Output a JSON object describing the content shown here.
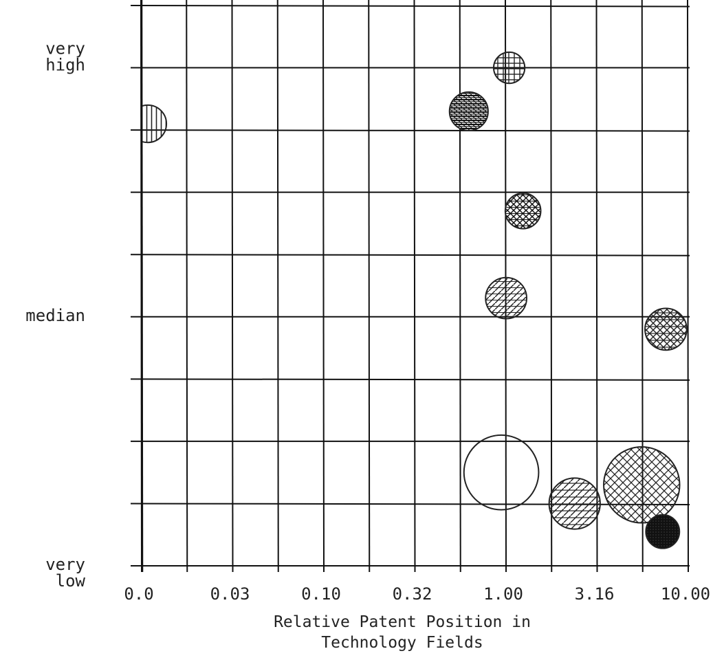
{
  "chart_data": {
    "type": "scatter",
    "subtype": "bubble",
    "xlabel": [
      "Relative Patent Position in",
      "Technology Fields"
    ],
    "ylabel": "",
    "x_scale": "log (√10 steps; first tick labelled 0.0)",
    "x_ticks": [
      "0.0",
      "0.03",
      "0.10",
      "0.32",
      "1.00",
      "3.16",
      "10.00"
    ],
    "y_tick_labels": [
      {
        "lines": [
          "very",
          "high"
        ],
        "level": 8
      },
      {
        "lines": [
          "median"
        ],
        "level": 4
      },
      {
        "lines": [
          "very",
          "low"
        ],
        "level": 0
      }
    ],
    "ylim": [
      0,
      9
    ],
    "grid": true,
    "legend": "none",
    "series": [
      {
        "x": 0.0109,
        "y": 7.1,
        "size": 0.6,
        "pattern": "vertical-hatch",
        "clip": "left-edge"
      },
      {
        "x": 1.05,
        "y": 8.0,
        "size": 0.5,
        "pattern": "grid-hatch"
      },
      {
        "x": 0.63,
        "y": 7.3,
        "size": 0.62,
        "pattern": "dense-brick"
      },
      {
        "x": 1.25,
        "y": 5.7,
        "size": 0.57,
        "pattern": "diamond-weave"
      },
      {
        "x": 1.01,
        "y": 4.3,
        "size": 0.66,
        "pattern": "diagonal-hatch"
      },
      {
        "x": 7.6,
        "y": 3.8,
        "size": 0.67,
        "pattern": "cross-weave"
      },
      {
        "x": 0.95,
        "y": 1.5,
        "size": 1.2,
        "pattern": "none"
      },
      {
        "x": 2.4,
        "y": 1.0,
        "size": 0.82,
        "pattern": "diagonal-stripes"
      },
      {
        "x": 5.6,
        "y": 1.3,
        "size": 1.22,
        "pattern": "crosshatch"
      },
      {
        "x": 7.3,
        "y": 0.55,
        "size": 0.54,
        "pattern": "solid-dark"
      }
    ]
  }
}
